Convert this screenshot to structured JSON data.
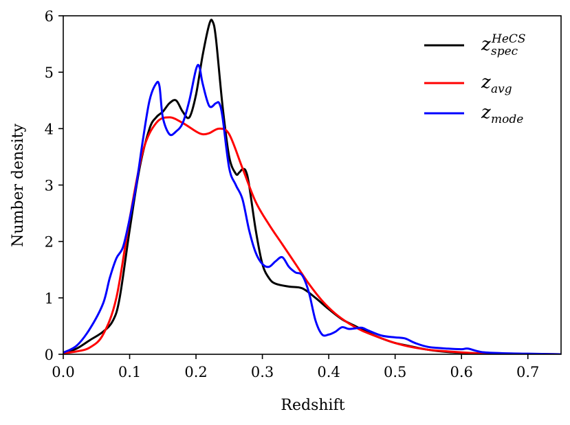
{
  "chart_data": {
    "type": "line",
    "title": "",
    "xlabel": "Redshift",
    "ylabel": "Number density",
    "xlim": [
      0.0,
      0.75
    ],
    "ylim": [
      0,
      6
    ],
    "xticks": [
      "0.0",
      "0.1",
      "0.2",
      "0.3",
      "0.4",
      "0.5",
      "0.6",
      "0.7"
    ],
    "yticks": [
      "0",
      "1",
      "2",
      "3",
      "4",
      "5",
      "6"
    ],
    "grid": false,
    "legend_position": "top-right",
    "series": [
      {
        "name": "z_spec^HeCS",
        "legend": {
          "base": "z",
          "sup": "HeCS",
          "sub": "spec"
        },
        "color": "#000000",
        "x": [
          0.0,
          0.02,
          0.04,
          0.06,
          0.075,
          0.085,
          0.1,
          0.115,
          0.13,
          0.14,
          0.15,
          0.16,
          0.17,
          0.18,
          0.19,
          0.2,
          0.21,
          0.22,
          0.225,
          0.23,
          0.24,
          0.25,
          0.26,
          0.265,
          0.27,
          0.275,
          0.28,
          0.29,
          0.3,
          0.31,
          0.32,
          0.34,
          0.36,
          0.38,
          0.4,
          0.42,
          0.44,
          0.46,
          0.48,
          0.5,
          0.52,
          0.55,
          0.58,
          0.62,
          0.66,
          0.7,
          0.75
        ],
        "y": [
          0.02,
          0.1,
          0.25,
          0.4,
          0.6,
          1.0,
          2.2,
          3.3,
          4.0,
          4.2,
          4.3,
          4.45,
          4.5,
          4.3,
          4.2,
          4.6,
          5.3,
          5.85,
          5.9,
          5.6,
          4.4,
          3.5,
          3.2,
          3.22,
          3.28,
          3.25,
          3.0,
          2.2,
          1.6,
          1.35,
          1.25,
          1.2,
          1.17,
          1.0,
          0.8,
          0.62,
          0.5,
          0.38,
          0.28,
          0.2,
          0.15,
          0.08,
          0.04,
          0.02,
          0.01,
          0.005,
          0.0
        ]
      },
      {
        "name": "z_avg",
        "legend": {
          "base": "z",
          "sup": "",
          "sub": "avg"
        },
        "color": "#ff0000",
        "x": [
          0.0,
          0.02,
          0.04,
          0.06,
          0.08,
          0.1,
          0.12,
          0.14,
          0.16,
          0.18,
          0.2,
          0.21,
          0.22,
          0.235,
          0.25,
          0.27,
          0.29,
          0.31,
          0.33,
          0.35,
          0.37,
          0.39,
          0.41,
          0.43,
          0.45,
          0.48,
          0.5,
          0.52,
          0.55,
          0.58,
          0.62,
          0.66,
          0.7,
          0.75
        ],
        "y": [
          0.02,
          0.05,
          0.12,
          0.35,
          1.0,
          2.4,
          3.6,
          4.1,
          4.2,
          4.1,
          3.95,
          3.9,
          3.92,
          4.0,
          3.9,
          3.3,
          2.7,
          2.3,
          1.95,
          1.6,
          1.25,
          0.95,
          0.72,
          0.55,
          0.42,
          0.28,
          0.2,
          0.14,
          0.08,
          0.05,
          0.02,
          0.01,
          0.005,
          0.0
        ]
      },
      {
        "name": "z_mode",
        "legend": {
          "base": "z",
          "sup": "",
          "sub": "mode"
        },
        "color": "#0000ff",
        "x": [
          0.0,
          0.02,
          0.04,
          0.06,
          0.07,
          0.08,
          0.09,
          0.1,
          0.11,
          0.12,
          0.13,
          0.14,
          0.145,
          0.15,
          0.16,
          0.17,
          0.18,
          0.19,
          0.2,
          0.205,
          0.21,
          0.22,
          0.23,
          0.235,
          0.24,
          0.25,
          0.26,
          0.27,
          0.28,
          0.29,
          0.3,
          0.31,
          0.32,
          0.33,
          0.34,
          0.35,
          0.36,
          0.37,
          0.38,
          0.39,
          0.4,
          0.41,
          0.42,
          0.43,
          0.44,
          0.45,
          0.46,
          0.48,
          0.5,
          0.515,
          0.53,
          0.55,
          0.58,
          0.6,
          0.61,
          0.63,
          0.66,
          0.7,
          0.75
        ],
        "y": [
          0.03,
          0.15,
          0.45,
          0.9,
          1.35,
          1.7,
          1.9,
          2.4,
          3.0,
          3.8,
          4.5,
          4.8,
          4.75,
          4.2,
          3.9,
          3.95,
          4.1,
          4.5,
          5.05,
          5.1,
          4.8,
          4.4,
          4.45,
          4.45,
          4.2,
          3.3,
          3.0,
          2.75,
          2.2,
          1.8,
          1.6,
          1.55,
          1.65,
          1.72,
          1.55,
          1.45,
          1.4,
          1.1,
          0.6,
          0.35,
          0.35,
          0.4,
          0.48,
          0.45,
          0.46,
          0.47,
          0.42,
          0.33,
          0.3,
          0.28,
          0.2,
          0.13,
          0.1,
          0.09,
          0.1,
          0.04,
          0.02,
          0.01,
          0.0
        ]
      }
    ]
  }
}
